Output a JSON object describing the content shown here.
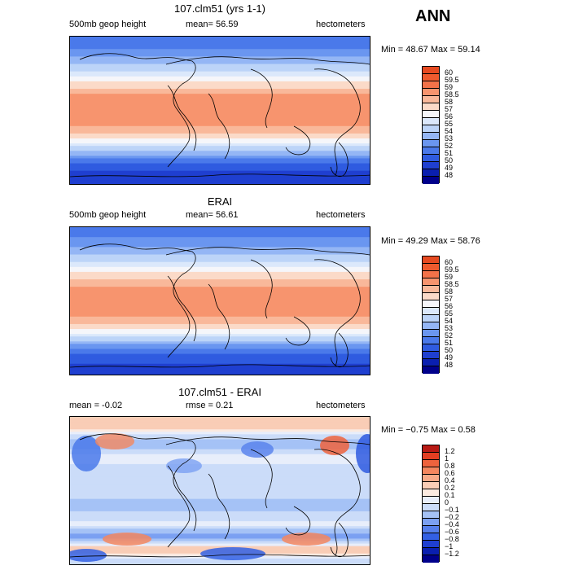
{
  "season": "ANN",
  "colors": {
    "abs_palette": [
      "#00008b",
      "#0a1fb0",
      "#1f3fd0",
      "#2f5be0",
      "#4a79ea",
      "#6a96f0",
      "#94b6f5",
      "#bcd4f8",
      "#dbe8fb",
      "#f5f6fa",
      "#fbdac8",
      "#f9b89a",
      "#f7946e",
      "#f37249",
      "#ee5a2e",
      "#e64a21",
      "#c42818",
      "#8b0000"
    ],
    "diff_palette": [
      "#00008b",
      "#0a1fb0",
      "#1f3fd0",
      "#3360e4",
      "#557fec",
      "#7ba0f2",
      "#a5c2f6",
      "#cbdcf9",
      "#e8eefb",
      "#fbeae0",
      "#f9cdb6",
      "#f7aa88",
      "#f4875f",
      "#ee633d",
      "#e23e22",
      "#b81a14",
      "#8b0000"
    ]
  },
  "chart_data": [
    {
      "type": "heatmap",
      "title": "107.clm51 (yrs 1-1)",
      "left_label": "500mb geop height",
      "mean_text": "mean=  56.59",
      "units": "hectometers",
      "min_max_text": "Min =  48.67 Max =  59.14",
      "levels": [
        "60",
        "59.5",
        "59",
        "58.5",
        "58",
        "57",
        "56",
        "55",
        "54",
        "53",
        "52",
        "51",
        "50",
        "49",
        "48"
      ],
      "x_range": [
        0,
        360
      ],
      "y_range": [
        -90,
        90
      ],
      "values_by_latitude": [
        {
          "lat": 90,
          "value": 51.5
        },
        {
          "lat": 75,
          "value": 52.0
        },
        {
          "lat": 60,
          "value": 53.6
        },
        {
          "lat": 45,
          "value": 55.4
        },
        {
          "lat": 35,
          "value": 57.2
        },
        {
          "lat": 25,
          "value": 58.4
        },
        {
          "lat": 15,
          "value": 58.7
        },
        {
          "lat": 0,
          "value": 58.8
        },
        {
          "lat": -15,
          "value": 58.7
        },
        {
          "lat": -25,
          "value": 58.2
        },
        {
          "lat": -35,
          "value": 56.7
        },
        {
          "lat": -45,
          "value": 54.6
        },
        {
          "lat": -55,
          "value": 52.5
        },
        {
          "lat": -65,
          "value": 50.8
        },
        {
          "lat": -75,
          "value": 49.8
        },
        {
          "lat": -90,
          "value": 49.2
        }
      ]
    },
    {
      "type": "heatmap",
      "title": "ERAI",
      "left_label": "500mb geop height",
      "mean_text": "mean=  56.61",
      "units": "hectometers",
      "min_max_text": "Min =  49.29 Max =  58.76",
      "levels": [
        "60",
        "59.5",
        "59",
        "58.5",
        "58",
        "57",
        "56",
        "55",
        "54",
        "53",
        "52",
        "51",
        "50",
        "49",
        "48"
      ],
      "x_range": [
        0,
        360
      ],
      "y_range": [
        -90,
        90
      ],
      "values_by_latitude": [
        {
          "lat": 90,
          "value": 51.6
        },
        {
          "lat": 75,
          "value": 52.1
        },
        {
          "lat": 60,
          "value": 53.7
        },
        {
          "lat": 45,
          "value": 55.5
        },
        {
          "lat": 35,
          "value": 57.1
        },
        {
          "lat": 25,
          "value": 58.3
        },
        {
          "lat": 15,
          "value": 58.6
        },
        {
          "lat": 0,
          "value": 58.7
        },
        {
          "lat": -15,
          "value": 58.6
        },
        {
          "lat": -25,
          "value": 58.1
        },
        {
          "lat": -35,
          "value": 56.6
        },
        {
          "lat": -45,
          "value": 54.5
        },
        {
          "lat": -55,
          "value": 52.4
        },
        {
          "lat": -65,
          "value": 50.9
        },
        {
          "lat": -75,
          "value": 50.0
        },
        {
          "lat": -90,
          "value": 49.6
        }
      ]
    },
    {
      "type": "heatmap",
      "title": "107.clm51 - ERAI",
      "mean_text": "mean =  -0.02",
      "rmse_text": "rmse =   0.21",
      "units": "hectometers",
      "min_max_text": "Min =  −0.75 Max =   0.58",
      "levels": [
        "1.2",
        "1",
        "0.8",
        "0.6",
        "0.4",
        "0.2",
        "0.1",
        "0",
        "−0.1",
        "−0.2",
        "−0.4",
        "−0.6",
        "−0.8",
        "−1",
        "−1.2"
      ],
      "x_range": [
        0,
        360
      ],
      "y_range": [
        -90,
        90
      ],
      "values_by_latitude": [
        {
          "lat": 80,
          "value": 0.3
        },
        {
          "lat": 60,
          "value": -0.2
        },
        {
          "lat": 40,
          "value": 0.05
        },
        {
          "lat": 20,
          "value": -0.1
        },
        {
          "lat": 0,
          "value": -0.05
        },
        {
          "lat": -20,
          "value": -0.15
        },
        {
          "lat": -40,
          "value": 0.05
        },
        {
          "lat": -55,
          "value": -0.3
        },
        {
          "lat": -70,
          "value": 0.3
        },
        {
          "lat": -85,
          "value": -0.1
        }
      ]
    }
  ]
}
